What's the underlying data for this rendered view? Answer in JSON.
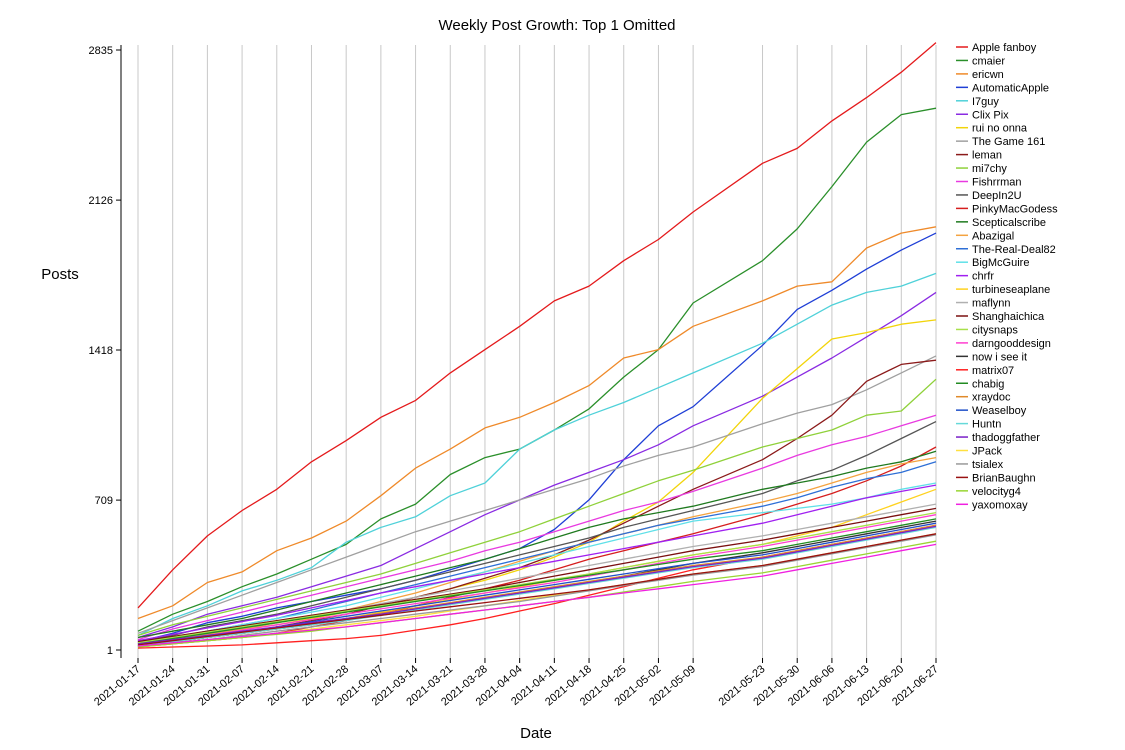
{
  "chart_data": {
    "type": "line",
    "title": "Weekly Post Growth: Top 1 Omitted",
    "xlabel": "Date",
    "ylabel": "Posts",
    "x": [
      "2021-01-17",
      "2021-01-24",
      "2021-01-31",
      "2021-02-07",
      "2021-02-14",
      "2021-02-21",
      "2021-02-28",
      "2021-03-07",
      "2021-03-14",
      "2021-03-21",
      "2021-03-28",
      "2021-04-04",
      "2021-04-11",
      "2021-04-18",
      "2021-04-25",
      "2021-05-02",
      "2021-05-09",
      "2021-05-23",
      "2021-05-30",
      "2021-06-06",
      "2021-06-13",
      "2021-06-20",
      "2021-06-27"
    ],
    "yticks": [
      1,
      709,
      1418,
      2126,
      2835
    ],
    "ylim": [
      1,
      2835
    ],
    "grid": "vertical",
    "legend_position": "right",
    "series": [
      {
        "name": "Apple fanboy",
        "color": "#e41a1c",
        "values": [
          200,
          380,
          540,
          660,
          760,
          890,
          990,
          1100,
          1180,
          1310,
          1420,
          1530,
          1650,
          1720,
          1840,
          1940,
          2070,
          2300,
          2370,
          2500,
          2610,
          2730,
          2870
        ]
      },
      {
        "name": "cmaier",
        "color": "#2a8f2a",
        "values": [
          90,
          170,
          230,
          300,
          360,
          430,
          500,
          620,
          690,
          830,
          910,
          950,
          1040,
          1140,
          1290,
          1420,
          1640,
          1840,
          1990,
          2190,
          2400,
          2530,
          2560
        ]
      },
      {
        "name": "ericwn",
        "color": "#ef8a2a",
        "values": [
          150,
          210,
          320,
          370,
          470,
          530,
          610,
          730,
          860,
          950,
          1050,
          1100,
          1170,
          1250,
          1380,
          1420,
          1530,
          1650,
          1720,
          1740,
          1900,
          1970,
          2000
        ]
      },
      {
        "name": "AutomaticApple",
        "color": "#1f3fd6",
        "values": [
          40,
          80,
          130,
          160,
          200,
          230,
          260,
          290,
          330,
          380,
          430,
          480,
          570,
          710,
          900,
          1060,
          1150,
          1440,
          1610,
          1700,
          1800,
          1890,
          1970
        ]
      },
      {
        "name": "I7guy",
        "color": "#4fd1d9",
        "values": [
          70,
          150,
          210,
          280,
          330,
          390,
          510,
          580,
          630,
          730,
          790,
          950,
          1040,
          1110,
          1170,
          1240,
          1310,
          1450,
          1540,
          1630,
          1690,
          1720,
          1780
        ]
      },
      {
        "name": "Clix Pix",
        "color": "#8a2be2",
        "values": [
          60,
          110,
          170,
          210,
          250,
          300,
          350,
          400,
          480,
          560,
          640,
          710,
          780,
          840,
          900,
          970,
          1060,
          1200,
          1290,
          1380,
          1480,
          1580,
          1690
        ]
      },
      {
        "name": "rui no onna",
        "color": "#f2d40a",
        "values": [
          30,
          55,
          80,
          100,
          120,
          150,
          180,
          210,
          250,
          290,
          330,
          380,
          440,
          510,
          610,
          700,
          840,
          1190,
          1330,
          1470,
          1500,
          1540,
          1560
        ]
      },
      {
        "name": "The Game 161",
        "color": "#a0a0a0",
        "values": [
          80,
          140,
          200,
          260,
          320,
          380,
          440,
          500,
          560,
          610,
          660,
          710,
          760,
          810,
          870,
          920,
          960,
          1070,
          1120,
          1160,
          1230,
          1310,
          1390
        ]
      },
      {
        "name": "leman",
        "color": "#8b1a1a",
        "values": [
          20,
          40,
          60,
          80,
          110,
          140,
          170,
          210,
          250,
          290,
          340,
          390,
          450,
          520,
          600,
          680,
          760,
          900,
          1000,
          1110,
          1270,
          1350,
          1370
        ]
      },
      {
        "name": "mi7chy",
        "color": "#8fd13a",
        "values": [
          70,
          120,
          160,
          200,
          240,
          280,
          320,
          360,
          410,
          460,
          510,
          560,
          620,
          680,
          740,
          800,
          850,
          960,
          1000,
          1040,
          1110,
          1130,
          1280
        ]
      },
      {
        "name": "Fishrrman",
        "color": "#e83ae0",
        "values": [
          50,
          100,
          140,
          180,
          220,
          260,
          300,
          340,
          380,
          420,
          470,
          510,
          560,
          610,
          660,
          700,
          750,
          860,
          920,
          970,
          1010,
          1060,
          1110
        ]
      },
      {
        "name": "DeepIn2U",
        "color": "#555555",
        "values": [
          40,
          70,
          110,
          140,
          170,
          210,
          250,
          290,
          330,
          370,
          410,
          450,
          490,
          530,
          580,
          620,
          660,
          740,
          800,
          850,
          920,
          1000,
          1080
        ]
      },
      {
        "name": "PinkyMacGodess",
        "color": "#d61e1e",
        "values": [
          15,
          30,
          45,
          60,
          80,
          110,
          140,
          170,
          210,
          250,
          290,
          330,
          380,
          430,
          470,
          510,
          550,
          640,
          690,
          740,
          800,
          870,
          960
        ]
      },
      {
        "name": "Scepticalscribe",
        "color": "#1f7a1f",
        "values": [
          60,
          90,
          120,
          150,
          190,
          230,
          270,
          310,
          350,
          390,
          430,
          480,
          530,
          580,
          620,
          650,
          680,
          760,
          790,
          820,
          860,
          890,
          940
        ]
      },
      {
        "name": "Abazigal",
        "color": "#f4a340",
        "values": [
          25,
          50,
          75,
          100,
          130,
          160,
          190,
          230,
          270,
          320,
          370,
          420,
          470,
          510,
          550,
          590,
          630,
          700,
          740,
          790,
          840,
          880,
          910
        ]
      },
      {
        "name": "The-Real-Deal82",
        "color": "#2e6fd6",
        "values": [
          35,
          60,
          90,
          120,
          150,
          190,
          230,
          270,
          310,
          350,
          390,
          430,
          470,
          510,
          550,
          590,
          620,
          680,
          720,
          770,
          810,
          840,
          890
        ]
      },
      {
        "name": "BigMcGuire",
        "color": "#5fe0e8",
        "values": [
          30,
          60,
          90,
          120,
          150,
          180,
          210,
          250,
          290,
          330,
          370,
          410,
          450,
          490,
          530,
          570,
          610,
          650,
          670,
          690,
          720,
          760,
          790
        ]
      },
      {
        "name": "chrfr",
        "color": "#a020f0",
        "values": [
          45,
          75,
          105,
          135,
          165,
          200,
          235,
          270,
          300,
          330,
          360,
          390,
          420,
          450,
          480,
          510,
          540,
          600,
          640,
          680,
          720,
          750,
          780
        ]
      },
      {
        "name": "turbineseaplane",
        "color": "#ffd21f",
        "values": [
          20,
          40,
          60,
          80,
          100,
          125,
          150,
          180,
          210,
          240,
          270,
          300,
          330,
          360,
          390,
          420,
          450,
          500,
          540,
          580,
          640,
          700,
          760
        ]
      },
      {
        "name": "maflynn",
        "color": "#b0b0b0",
        "values": [
          30,
          55,
          80,
          105,
          130,
          160,
          190,
          220,
          250,
          280,
          310,
          340,
          370,
          400,
          430,
          460,
          490,
          540,
          570,
          600,
          630,
          660,
          690
        ]
      },
      {
        "name": "Shanghaichica",
        "color": "#7a1010",
        "values": [
          40,
          65,
          90,
          115,
          140,
          165,
          190,
          215,
          240,
          265,
          290,
          320,
          350,
          380,
          410,
          440,
          470,
          520,
          550,
          580,
          610,
          640,
          670
        ]
      },
      {
        "name": "citysnaps",
        "color": "#a8e04a",
        "values": [
          35,
          60,
          85,
          110,
          135,
          160,
          185,
          210,
          235,
          260,
          285,
          310,
          335,
          360,
          390,
          420,
          450,
          500,
          530,
          560,
          590,
          620,
          650
        ]
      },
      {
        "name": "darngooddesign",
        "color": "#ff3fd0",
        "values": [
          25,
          45,
          70,
          95,
          120,
          145,
          170,
          195,
          220,
          245,
          270,
          295,
          320,
          350,
          380,
          410,
          440,
          490,
          520,
          550,
          580,
          610,
          640
        ]
      },
      {
        "name": "now i see it",
        "color": "#333333",
        "values": [
          20,
          40,
          60,
          80,
          100,
          120,
          145,
          170,
          195,
          220,
          245,
          270,
          295,
          320,
          350,
          380,
          410,
          460,
          490,
          520,
          550,
          580,
          610
        ]
      },
      {
        "name": "matrix07",
        "color": "#ff2020",
        "values": [
          10,
          15,
          20,
          25,
          35,
          45,
          55,
          70,
          95,
          120,
          150,
          185,
          220,
          260,
          300,
          340,
          380,
          440,
          470,
          500,
          530,
          560,
          590
        ]
      },
      {
        "name": "chabig",
        "color": "#228b22",
        "values": [
          30,
          55,
          80,
          105,
          130,
          155,
          180,
          205,
          230,
          255,
          280,
          305,
          330,
          355,
          380,
          405,
          430,
          470,
          500,
          530,
          560,
          590,
          620
        ]
      },
      {
        "name": "xraydoc",
        "color": "#e08a2a",
        "values": [
          20,
          40,
          60,
          80,
          100,
          125,
          150,
          175,
          200,
          225,
          250,
          275,
          300,
          325,
          350,
          375,
          400,
          440,
          470,
          500,
          530,
          560,
          590
        ]
      },
      {
        "name": "Weaselboy",
        "color": "#2050c8",
        "values": [
          25,
          45,
          65,
          85,
          110,
          135,
          160,
          185,
          210,
          235,
          260,
          285,
          310,
          335,
          360,
          385,
          410,
          450,
          480,
          510,
          540,
          570,
          600
        ]
      },
      {
        "name": "Huntn",
        "color": "#66d9d9",
        "values": [
          20,
          40,
          60,
          80,
          100,
          120,
          140,
          165,
          190,
          215,
          240,
          265,
          290,
          315,
          340,
          365,
          390,
          430,
          460,
          490,
          520,
          550,
          580
        ]
      },
      {
        "name": "thadoggfather",
        "color": "#7a20c8",
        "values": [
          30,
          50,
          70,
          90,
          110,
          130,
          150,
          170,
          195,
          220,
          245,
          270,
          295,
          320,
          345,
          370,
          395,
          435,
          465,
          495,
          525,
          555,
          585
        ]
      },
      {
        "name": "JPack",
        "color": "#ffe040",
        "values": [
          15,
          30,
          45,
          60,
          80,
          100,
          120,
          140,
          160,
          185,
          210,
          235,
          260,
          285,
          310,
          335,
          360,
          400,
          430,
          460,
          490,
          520,
          550
        ]
      },
      {
        "name": "tsialex",
        "color": "#999999",
        "values": [
          20,
          35,
          50,
          70,
          90,
          110,
          130,
          150,
          170,
          190,
          210,
          230,
          255,
          280,
          305,
          330,
          355,
          395,
          425,
          455,
          485,
          515,
          545
        ]
      },
      {
        "name": "BrianBaughn",
        "color": "#991111",
        "values": [
          25,
          45,
          65,
          85,
          105,
          125,
          145,
          165,
          185,
          205,
          225,
          245,
          265,
          285,
          310,
          335,
          360,
          400,
          430,
          460,
          490,
          520,
          550
        ]
      },
      {
        "name": "velocityg4",
        "color": "#99d633",
        "values": [
          15,
          30,
          45,
          60,
          75,
          90,
          110,
          130,
          150,
          170,
          190,
          210,
          230,
          250,
          275,
          300,
          325,
          365,
          395,
          425,
          455,
          485,
          515
        ]
      },
      {
        "name": "yaxomoxay",
        "color": "#f020e0",
        "values": [
          20,
          35,
          50,
          65,
          80,
          95,
          110,
          130,
          150,
          170,
          190,
          210,
          230,
          250,
          270,
          290,
          310,
          350,
          380,
          410,
          440,
          470,
          500
        ]
      }
    ]
  }
}
